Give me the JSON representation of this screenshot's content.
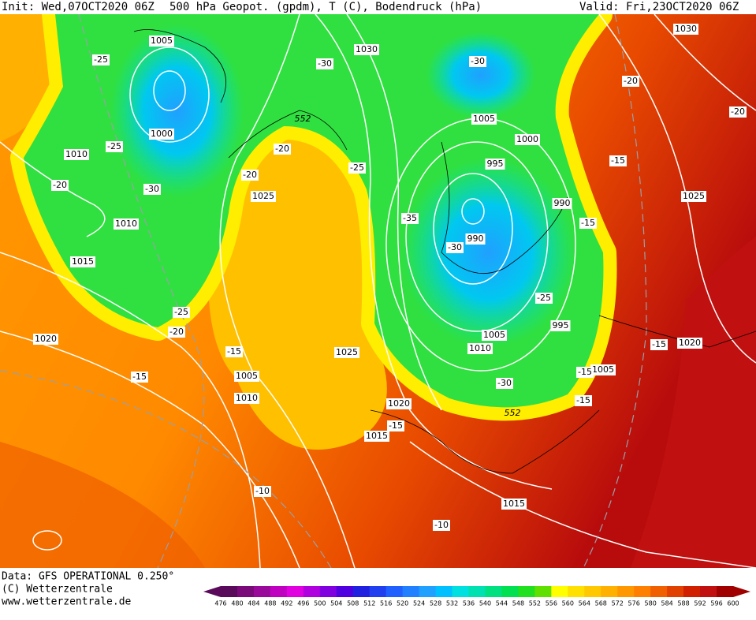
{
  "header": {
    "init": "Init: Wed,07OCT2020 06Z",
    "title": "500 hPa Geopot. (gpdm), T (C), Bodendruck (hPa)",
    "valid": "Valid: Fri,23OCT2020 06Z"
  },
  "footer": {
    "data": "Data: GFS OPERATIONAL 0.250°",
    "copyright": "(C) Wetterzentrale",
    "url": "www.wetterzentrale.de"
  },
  "colorbar": {
    "levels": [
      476,
      480,
      484,
      488,
      492,
      496,
      500,
      504,
      508,
      512,
      516,
      520,
      524,
      528,
      532,
      536,
      540,
      544,
      548,
      552,
      556,
      560,
      564,
      568,
      572,
      576,
      580,
      584,
      588,
      592,
      596,
      600
    ],
    "colors": [
      "#5a0a5a",
      "#7a0a7a",
      "#9a0a9a",
      "#c000c0",
      "#e000e0",
      "#b000e0",
      "#8000e0",
      "#5000e0",
      "#2020e0",
      "#2040f0",
      "#2060ff",
      "#2080ff",
      "#20a0ff",
      "#00c0ff",
      "#00e0e0",
      "#00e0b0",
      "#00e080",
      "#00e050",
      "#20e020",
      "#60e000",
      "#ffff00",
      "#ffe000",
      "#ffc800",
      "#ffb000",
      "#ff9800",
      "#ff8000",
      "#f06000",
      "#e04000",
      "#d02000",
      "#c01010",
      "#a00000"
    ]
  },
  "map": {
    "pressure_labels": [
      1005,
      1030,
      1000,
      1010,
      1010,
      1015,
      1020,
      1025,
      1025,
      1005,
      1010,
      1005,
      1000,
      995,
      990,
      990,
      1005,
      1010,
      995,
      1005,
      1020,
      1015,
      1015,
      1030,
      1025,
      1020
    ],
    "temperature_labels": [
      -25,
      -30,
      -30,
      -20,
      -20,
      -25,
      -20,
      -25,
      -20,
      -20,
      -30,
      -15,
      -35,
      -15,
      -30,
      -25,
      -25,
      -20,
      -15,
      -15,
      -15,
      -30,
      -15,
      -15,
      -15,
      -10,
      -10
    ],
    "geopotential_labels": [
      552,
      552
    ]
  }
}
